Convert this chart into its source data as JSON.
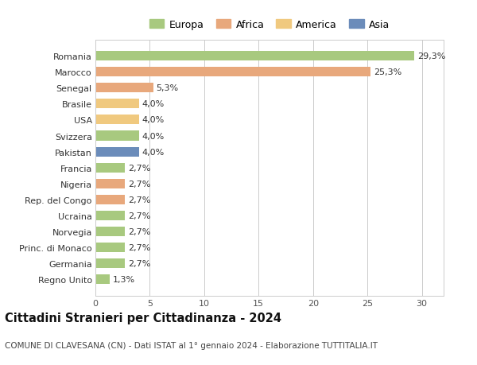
{
  "categories": [
    "Regno Unito",
    "Germania",
    "Princ. di Monaco",
    "Norvegia",
    "Ucraina",
    "Rep. del Congo",
    "Nigeria",
    "Francia",
    "Pakistan",
    "Svizzera",
    "USA",
    "Brasile",
    "Senegal",
    "Marocco",
    "Romania"
  ],
  "values": [
    1.3,
    2.7,
    2.7,
    2.7,
    2.7,
    2.7,
    2.7,
    2.7,
    4.0,
    4.0,
    4.0,
    4.0,
    5.3,
    25.3,
    29.3
  ],
  "colors": [
    "#a8c97f",
    "#a8c97f",
    "#a8c97f",
    "#a8c97f",
    "#a8c97f",
    "#e8a87c",
    "#e8a87c",
    "#a8c97f",
    "#6b8cba",
    "#a8c97f",
    "#f0c97f",
    "#f0c97f",
    "#e8a87c",
    "#e8a87c",
    "#a8c97f"
  ],
  "labels": [
    "1,3%",
    "2,7%",
    "2,7%",
    "2,7%",
    "2,7%",
    "2,7%",
    "2,7%",
    "2,7%",
    "4,0%",
    "4,0%",
    "4,0%",
    "4,0%",
    "5,3%",
    "25,3%",
    "29,3%"
  ],
  "legend": [
    {
      "label": "Europa",
      "color": "#a8c97f"
    },
    {
      "label": "Africa",
      "color": "#e8a87c"
    },
    {
      "label": "America",
      "color": "#f0c97f"
    },
    {
      "label": "Asia",
      "color": "#6b8cba"
    }
  ],
  "title": "Cittadini Stranieri per Cittadinanza - 2024",
  "subtitle": "COMUNE DI CLAVESANA (CN) - Dati ISTAT al 1° gennaio 2024 - Elaborazione TUTTITALIA.IT",
  "xlim": [
    0,
    32
  ],
  "xticks": [
    0,
    5,
    10,
    15,
    20,
    25,
    30
  ],
  "background_color": "#ffffff",
  "bar_height": 0.6,
  "grid_color": "#cccccc",
  "label_fontsize": 8,
  "tick_fontsize": 8,
  "ytick_fontsize": 8,
  "title_fontsize": 10.5,
  "subtitle_fontsize": 7.5,
  "legend_fontsize": 9
}
